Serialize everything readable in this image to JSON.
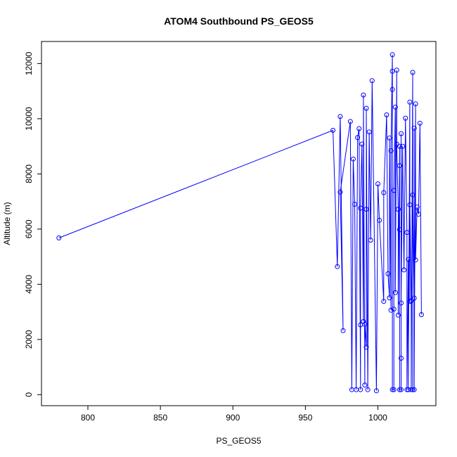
{
  "chart_data": {
    "type": "line",
    "title": "ATOM4 Southbound PS_GEOS5",
    "xlabel": "PS_GEOS5",
    "ylabel": "Altitude (m)",
    "xlim": [
      768,
      1040
    ],
    "ylim": [
      -400,
      12800
    ],
    "x_ticks": [
      800,
      850,
      900,
      950,
      1000
    ],
    "x_tick_labels": [
      "800",
      "850",
      "900",
      "950",
      "1000"
    ],
    "y_ticks": [
      0,
      2000,
      4000,
      6000,
      8000,
      10000,
      12000
    ],
    "y_tick_labels": [
      "0",
      "2000",
      "4000",
      "6000",
      "8000",
      "10000",
      "12000"
    ],
    "grid": false,
    "legend": "none",
    "series": [
      {
        "color": "#0000ff",
        "marker": "open-circle",
        "points": [
          [
            780,
            5680
          ],
          [
            969,
            9580
          ],
          [
            972,
            4640
          ],
          [
            974,
            10080
          ],
          [
            976,
            2320
          ],
          [
            974,
            7340
          ],
          [
            981,
            9900
          ],
          [
            982,
            180
          ],
          [
            983,
            8540
          ],
          [
            984,
            6900
          ],
          [
            985,
            180
          ],
          [
            986,
            9320
          ],
          [
            987,
            9640
          ],
          [
            988,
            180
          ],
          [
            988,
            2530
          ],
          [
            988,
            6760
          ],
          [
            989,
            9080
          ],
          [
            990,
            2650
          ],
          [
            990,
            10860
          ],
          [
            991,
            350
          ],
          [
            991,
            2550
          ],
          [
            992,
            1720
          ],
          [
            992,
            6720
          ],
          [
            992,
            10380
          ],
          [
            993,
            180
          ],
          [
            994,
            9520
          ],
          [
            995,
            5600
          ],
          [
            996,
            11380
          ],
          [
            999,
            140
          ],
          [
            1000,
            7640
          ],
          [
            1001,
            6320
          ],
          [
            1004,
            3380
          ],
          [
            1004,
            7320
          ],
          [
            1006,
            10140
          ],
          [
            1007,
            4380
          ],
          [
            1008,
            3510
          ],
          [
            1008,
            9300
          ],
          [
            1009,
            3060
          ],
          [
            1009,
            8840
          ],
          [
            1010,
            12320
          ],
          [
            1010,
            11720
          ],
          [
            1010,
            11060
          ],
          [
            1010,
            180
          ],
          [
            1011,
            180
          ],
          [
            1011,
            3100
          ],
          [
            1011,
            7400
          ],
          [
            1012,
            10420
          ],
          [
            1012,
            3700
          ],
          [
            1013,
            11760
          ],
          [
            1013,
            9080
          ],
          [
            1014,
            6720
          ],
          [
            1014,
            2880
          ],
          [
            1015,
            9000
          ],
          [
            1015,
            5980
          ],
          [
            1015,
            8300
          ],
          [
            1015,
            180
          ],
          [
            1016,
            180
          ],
          [
            1016,
            1320
          ],
          [
            1016,
            9460
          ],
          [
            1016,
            3320
          ],
          [
            1017,
            9000
          ],
          [
            1018,
            4520
          ],
          [
            1019,
            10020
          ],
          [
            1020,
            5880
          ],
          [
            1020,
            180
          ],
          [
            1021,
            4900
          ],
          [
            1021,
            180
          ],
          [
            1022,
            10600
          ],
          [
            1022,
            3380
          ],
          [
            1022,
            6880
          ],
          [
            1023,
            3400
          ],
          [
            1023,
            180
          ],
          [
            1024,
            11680
          ],
          [
            1024,
            180
          ],
          [
            1024,
            7240
          ],
          [
            1025,
            3500
          ],
          [
            1025,
            9660
          ],
          [
            1025,
            180
          ],
          [
            1026,
            10540
          ],
          [
            1026,
            4880
          ],
          [
            1027,
            6800
          ],
          [
            1028,
            6540
          ],
          [
            1029,
            9840
          ],
          [
            1030,
            2900
          ]
        ]
      }
    ]
  }
}
